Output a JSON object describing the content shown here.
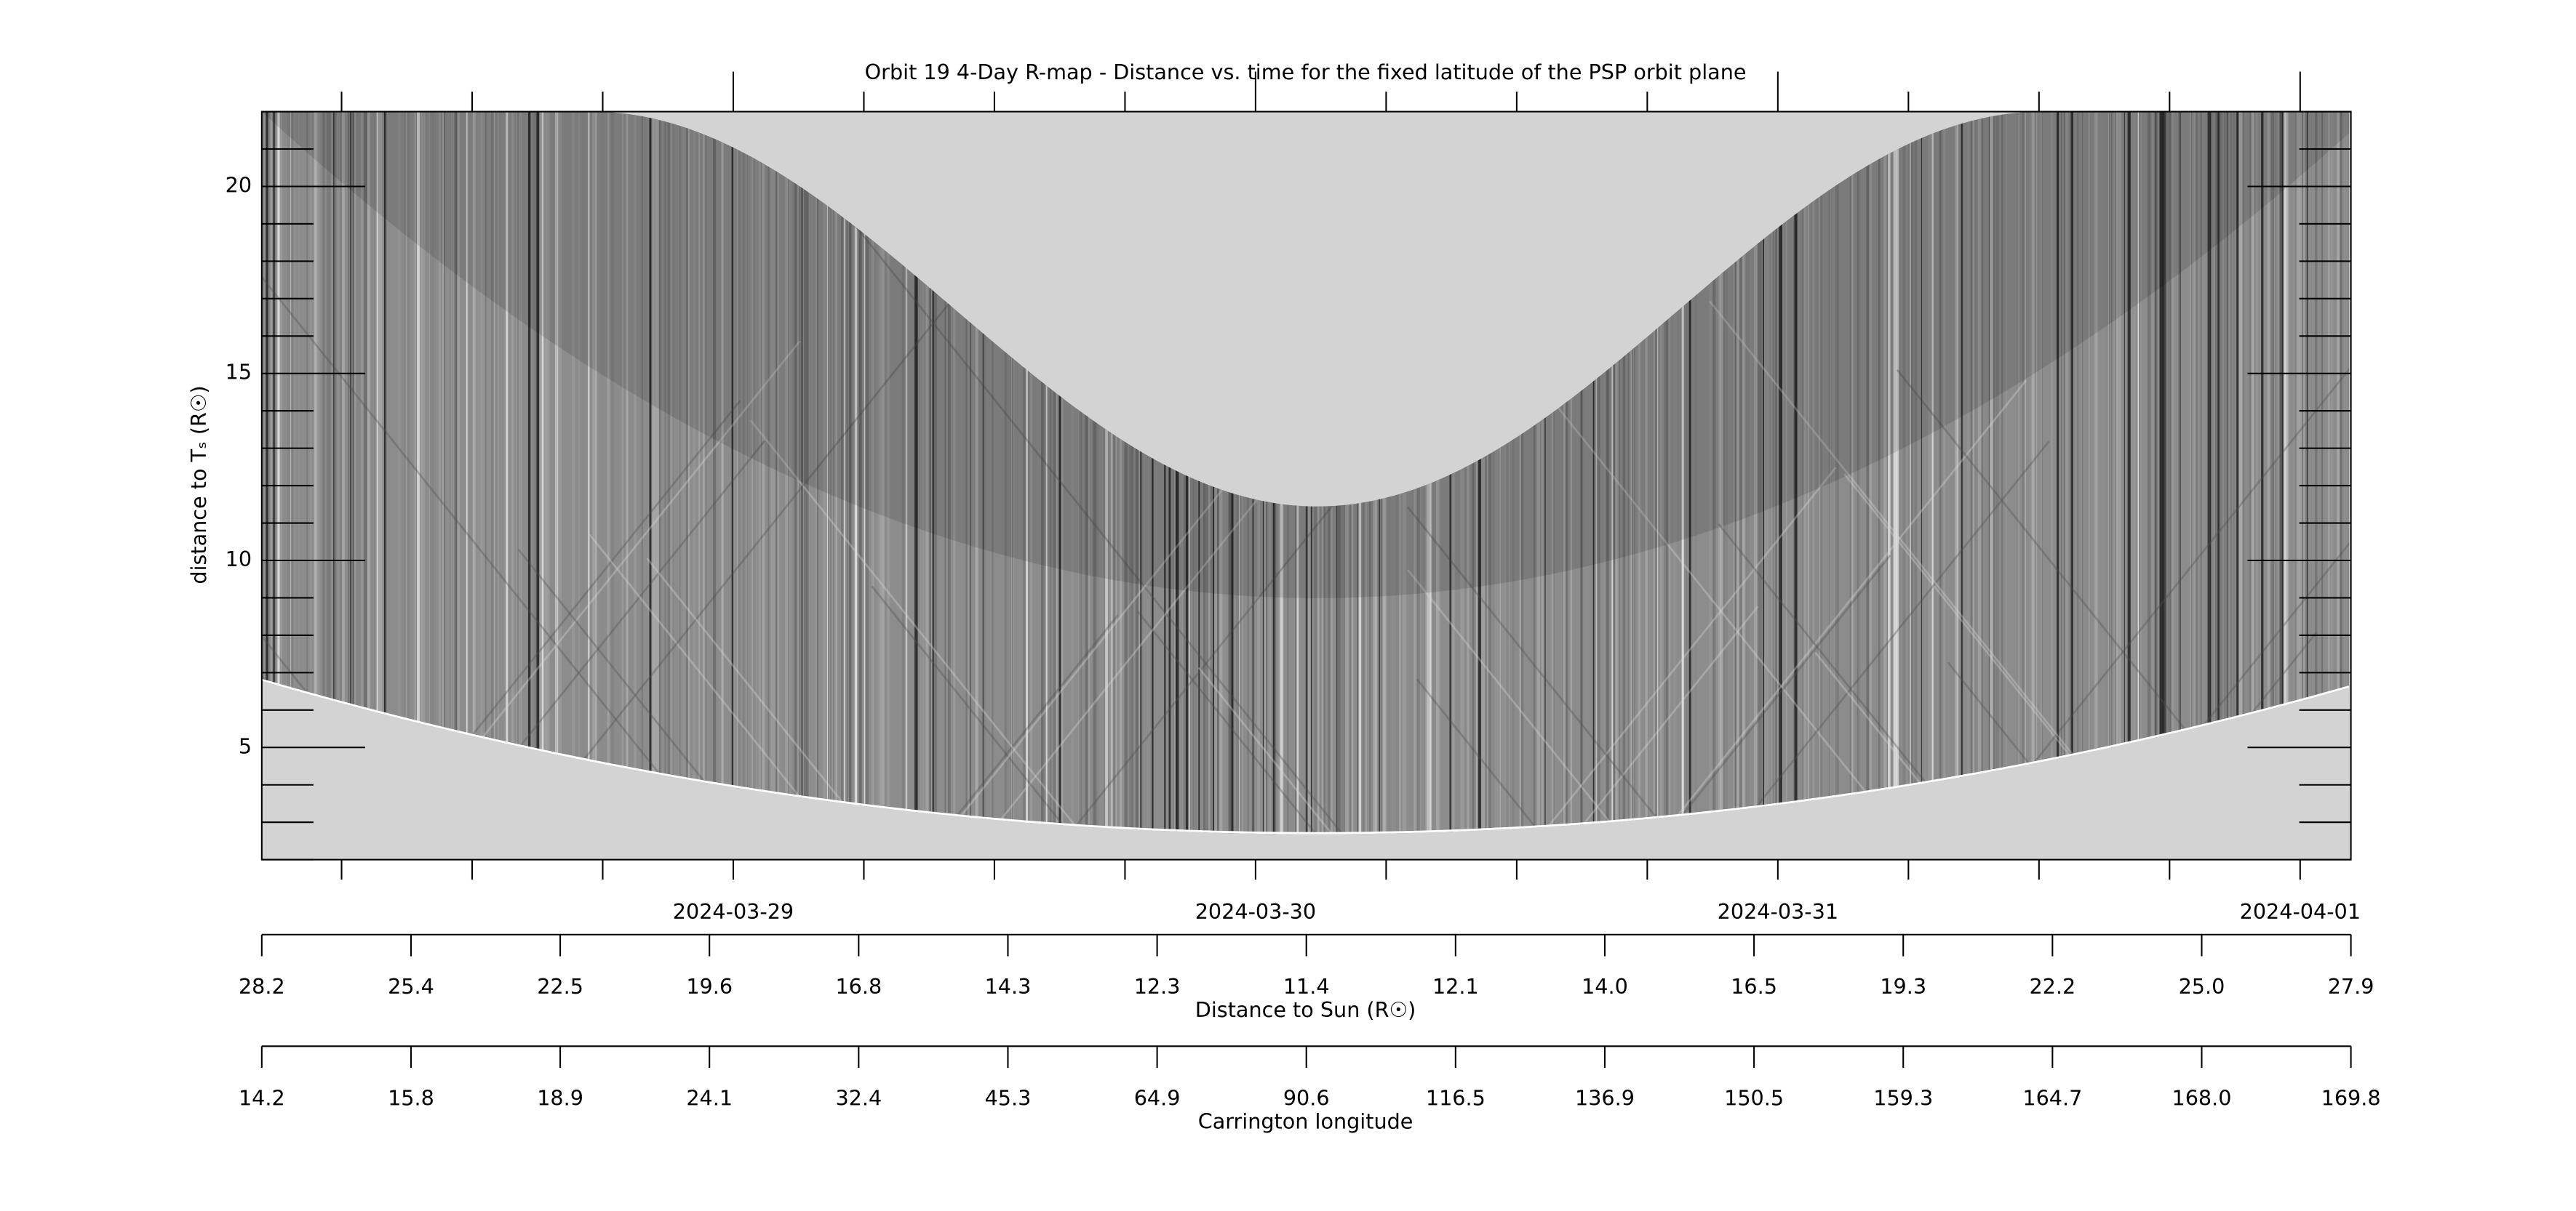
{
  "chart_data": {
    "type": "image",
    "title": "Orbit 19 4-Day R-map - Distance vs. time for the fixed latitude of the PSP orbit plane",
    "ylabel": "distance to Tₛ (R☉)",
    "ylim": [
      2,
      22
    ],
    "yticks": [
      5,
      10,
      15,
      20
    ],
    "xlim": [
      "2024-03-28T02:20",
      "2024-04-01T02:20"
    ],
    "xticks": [
      "2024-03-29",
      "2024-03-30",
      "2024-03-31",
      "2024-04-01"
    ],
    "distance_axis": {
      "label": "Distance to Sun (R☉)",
      "ticks": [
        28.2,
        25.4,
        22.5,
        19.6,
        16.8,
        14.3,
        12.3,
        11.4,
        12.1,
        {
          "value": 14,
          "label": "14.0"
        },
        16.5,
        19.3,
        22.2,
        {
          "value": 25,
          "label": "25.0"
        },
        27.9
      ]
    },
    "carrington_axis": {
      "label": "Carrington longitude",
      "ticks": [
        14.2,
        15.8,
        18.9,
        24.1,
        32.4,
        45.3,
        64.9,
        90.6,
        116.5,
        136.9,
        150.5,
        159.3,
        164.7,
        {
          "value": 168,
          "label": "168.0"
        },
        169.8
      ]
    }
  }
}
